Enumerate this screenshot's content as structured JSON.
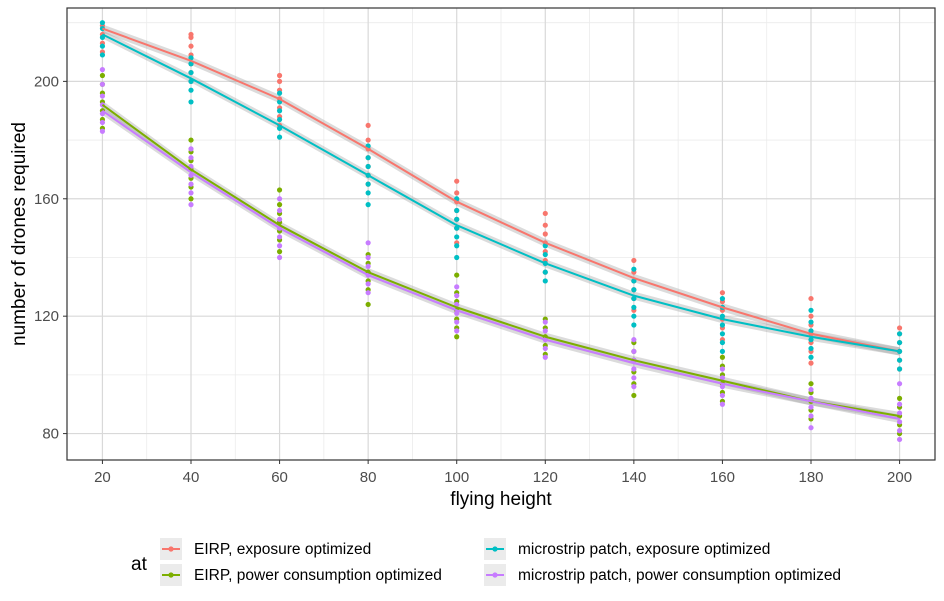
{
  "chart_data": {
    "type": "scatter",
    "title": "",
    "xlabel": "flying height",
    "ylabel": "number of drones required",
    "xlim": [
      12,
      208
    ],
    "ylim": [
      71,
      225
    ],
    "xticks": [
      20,
      40,
      60,
      80,
      100,
      120,
      140,
      160,
      180,
      200
    ],
    "yticks": [
      80,
      120,
      160,
      200
    ],
    "grid": true,
    "legend": {
      "title": "at",
      "position": "bottom",
      "entries": [
        "EIRP, exposure optimized",
        "EIRP, power consumption optimized",
        "microstrip patch, exposure optimized",
        "microstrip patch, power consumption optimized"
      ]
    },
    "series": [
      {
        "name": "EIRP, exposure optimized",
        "color": "#F8766D",
        "trend": [
          [
            20,
            218
          ],
          [
            40,
            207
          ],
          [
            60,
            194
          ],
          [
            80,
            177
          ],
          [
            100,
            159
          ],
          [
            120,
            145
          ],
          [
            140,
            133
          ],
          [
            160,
            123
          ],
          [
            180,
            114
          ],
          [
            200,
            108
          ]
        ],
        "points": [
          [
            20,
            210
          ],
          [
            20,
            213
          ],
          [
            20,
            216
          ],
          [
            20,
            219
          ],
          [
            40,
            200
          ],
          [
            40,
            203
          ],
          [
            40,
            206
          ],
          [
            40,
            209
          ],
          [
            40,
            212
          ],
          [
            40,
            215
          ],
          [
            40,
            216
          ],
          [
            60,
            185
          ],
          [
            60,
            188
          ],
          [
            60,
            191
          ],
          [
            60,
            194
          ],
          [
            60,
            197
          ],
          [
            60,
            200
          ],
          [
            60,
            202
          ],
          [
            80,
            165
          ],
          [
            80,
            168
          ],
          [
            80,
            171
          ],
          [
            80,
            174
          ],
          [
            80,
            177
          ],
          [
            80,
            180
          ],
          [
            80,
            185
          ],
          [
            100,
            145
          ],
          [
            100,
            150
          ],
          [
            100,
            153
          ],
          [
            100,
            156
          ],
          [
            100,
            159
          ],
          [
            100,
            162
          ],
          [
            100,
            166
          ],
          [
            120,
            135
          ],
          [
            120,
            139
          ],
          [
            120,
            142
          ],
          [
            120,
            145
          ],
          [
            120,
            148
          ],
          [
            120,
            151
          ],
          [
            120,
            155
          ],
          [
            140,
            122
          ],
          [
            140,
            126
          ],
          [
            140,
            129
          ],
          [
            140,
            132
          ],
          [
            140,
            135
          ],
          [
            140,
            139
          ],
          [
            160,
            112
          ],
          [
            160,
            116
          ],
          [
            160,
            119
          ],
          [
            160,
            122
          ],
          [
            160,
            125
          ],
          [
            160,
            128
          ],
          [
            180,
            104
          ],
          [
            180,
            108
          ],
          [
            180,
            111
          ],
          [
            180,
            114
          ],
          [
            180,
            117
          ],
          [
            180,
            120
          ],
          [
            180,
            126
          ],
          [
            200,
            102
          ],
          [
            200,
            105
          ],
          [
            200,
            108
          ],
          [
            200,
            111
          ],
          [
            200,
            114
          ],
          [
            200,
            116
          ]
        ]
      },
      {
        "name": "EIRP, power consumption optimized",
        "color": "#7CAE00",
        "trend": [
          [
            20,
            192
          ],
          [
            40,
            170
          ],
          [
            60,
            151
          ],
          [
            80,
            135
          ],
          [
            100,
            123
          ],
          [
            120,
            113
          ],
          [
            140,
            105
          ],
          [
            160,
            98
          ],
          [
            180,
            91
          ],
          [
            200,
            86
          ]
        ],
        "points": [
          [
            20,
            184
          ],
          [
            20,
            187
          ],
          [
            20,
            190
          ],
          [
            20,
            193
          ],
          [
            20,
            196
          ],
          [
            20,
            199
          ],
          [
            20,
            202
          ],
          [
            40,
            160
          ],
          [
            40,
            164
          ],
          [
            40,
            167
          ],
          [
            40,
            170
          ],
          [
            40,
            173
          ],
          [
            40,
            176
          ],
          [
            40,
            180
          ],
          [
            60,
            142
          ],
          [
            60,
            146
          ],
          [
            60,
            149
          ],
          [
            60,
            152
          ],
          [
            60,
            155
          ],
          [
            60,
            158
          ],
          [
            60,
            163
          ],
          [
            80,
            124
          ],
          [
            80,
            129
          ],
          [
            80,
            132
          ],
          [
            80,
            135
          ],
          [
            80,
            138
          ],
          [
            80,
            141
          ],
          [
            100,
            113
          ],
          [
            100,
            116
          ],
          [
            100,
            119
          ],
          [
            100,
            122
          ],
          [
            100,
            125
          ],
          [
            100,
            128
          ],
          [
            100,
            134
          ],
          [
            120,
            107
          ],
          [
            120,
            110
          ],
          [
            120,
            113
          ],
          [
            120,
            116
          ],
          [
            120,
            119
          ],
          [
            140,
            93
          ],
          [
            140,
            97
          ],
          [
            140,
            101
          ],
          [
            140,
            105
          ],
          [
            140,
            108
          ],
          [
            140,
            111
          ],
          [
            160,
            91
          ],
          [
            160,
            94
          ],
          [
            160,
            97
          ],
          [
            160,
            100
          ],
          [
            160,
            103
          ],
          [
            160,
            106
          ],
          [
            180,
            85
          ],
          [
            180,
            88
          ],
          [
            180,
            91
          ],
          [
            180,
            94
          ],
          [
            180,
            97
          ],
          [
            200,
            80
          ],
          [
            200,
            83
          ],
          [
            200,
            86
          ],
          [
            200,
            89
          ],
          [
            200,
            92
          ]
        ]
      },
      {
        "name": "microstrip patch, exposure optimized",
        "color": "#00BFC4",
        "trend": [
          [
            20,
            216
          ],
          [
            40,
            201
          ],
          [
            60,
            185
          ],
          [
            80,
            168
          ],
          [
            100,
            151
          ],
          [
            120,
            138
          ],
          [
            140,
            127
          ],
          [
            160,
            119
          ],
          [
            180,
            113
          ],
          [
            200,
            108
          ]
        ],
        "points": [
          [
            20,
            209
          ],
          [
            20,
            212
          ],
          [
            20,
            215
          ],
          [
            20,
            218
          ],
          [
            20,
            220
          ],
          [
            40,
            193
          ],
          [
            40,
            197
          ],
          [
            40,
            200
          ],
          [
            40,
            203
          ],
          [
            40,
            206
          ],
          [
            40,
            208
          ],
          [
            60,
            181
          ],
          [
            60,
            184
          ],
          [
            60,
            187
          ],
          [
            60,
            190
          ],
          [
            60,
            193
          ],
          [
            60,
            196
          ],
          [
            80,
            158
          ],
          [
            80,
            162
          ],
          [
            80,
            165
          ],
          [
            80,
            168
          ],
          [
            80,
            171
          ],
          [
            80,
            174
          ],
          [
            80,
            178
          ],
          [
            100,
            140
          ],
          [
            100,
            144
          ],
          [
            100,
            147
          ],
          [
            100,
            150
          ],
          [
            100,
            153
          ],
          [
            100,
            156
          ],
          [
            100,
            160
          ],
          [
            120,
            132
          ],
          [
            120,
            135
          ],
          [
            120,
            138
          ],
          [
            120,
            141
          ],
          [
            120,
            144
          ],
          [
            140,
            117
          ],
          [
            140,
            120
          ],
          [
            140,
            123
          ],
          [
            140,
            126
          ],
          [
            140,
            129
          ],
          [
            140,
            132
          ],
          [
            140,
            136
          ],
          [
            160,
            108
          ],
          [
            160,
            111
          ],
          [
            160,
            114
          ],
          [
            160,
            117
          ],
          [
            160,
            120
          ],
          [
            160,
            123
          ],
          [
            160,
            126
          ],
          [
            180,
            106
          ],
          [
            180,
            109
          ],
          [
            180,
            112
          ],
          [
            180,
            115
          ],
          [
            180,
            118
          ],
          [
            180,
            122
          ],
          [
            200,
            102
          ],
          [
            200,
            105
          ],
          [
            200,
            108
          ],
          [
            200,
            111
          ],
          [
            200,
            114
          ]
        ]
      },
      {
        "name": "microstrip patch, power consumption optimized",
        "color": "#C77CFF",
        "trend": [
          [
            20,
            190
          ],
          [
            40,
            169
          ],
          [
            60,
            150
          ],
          [
            80,
            134
          ],
          [
            100,
            122
          ],
          [
            120,
            112
          ],
          [
            140,
            104
          ],
          [
            160,
            97
          ],
          [
            180,
            91
          ],
          [
            200,
            85
          ]
        ],
        "points": [
          [
            20,
            183
          ],
          [
            20,
            186
          ],
          [
            20,
            189
          ],
          [
            20,
            192
          ],
          [
            20,
            195
          ],
          [
            20,
            199
          ],
          [
            20,
            204
          ],
          [
            40,
            158
          ],
          [
            40,
            162
          ],
          [
            40,
            165
          ],
          [
            40,
            168
          ],
          [
            40,
            171
          ],
          [
            40,
            174
          ],
          [
            40,
            177
          ],
          [
            60,
            140
          ],
          [
            60,
            144
          ],
          [
            60,
            147
          ],
          [
            60,
            150
          ],
          [
            60,
            153
          ],
          [
            60,
            156
          ],
          [
            60,
            160
          ],
          [
            80,
            128
          ],
          [
            80,
            131
          ],
          [
            80,
            134
          ],
          [
            80,
            137
          ],
          [
            80,
            140
          ],
          [
            80,
            145
          ],
          [
            100,
            115
          ],
          [
            100,
            118
          ],
          [
            100,
            121
          ],
          [
            100,
            124
          ],
          [
            100,
            127
          ],
          [
            100,
            130
          ],
          [
            120,
            106
          ],
          [
            120,
            109
          ],
          [
            120,
            112
          ],
          [
            120,
            115
          ],
          [
            120,
            118
          ],
          [
            140,
            96
          ],
          [
            140,
            99
          ],
          [
            140,
            102
          ],
          [
            140,
            105
          ],
          [
            140,
            108
          ],
          [
            140,
            112
          ],
          [
            160,
            90
          ],
          [
            160,
            93
          ],
          [
            160,
            96
          ],
          [
            160,
            99
          ],
          [
            160,
            102
          ],
          [
            180,
            82
          ],
          [
            180,
            86
          ],
          [
            180,
            89
          ],
          [
            180,
            92
          ],
          [
            180,
            95
          ],
          [
            200,
            78
          ],
          [
            200,
            81
          ],
          [
            200,
            84
          ],
          [
            200,
            87
          ],
          [
            200,
            90
          ],
          [
            200,
            97
          ]
        ]
      }
    ]
  }
}
